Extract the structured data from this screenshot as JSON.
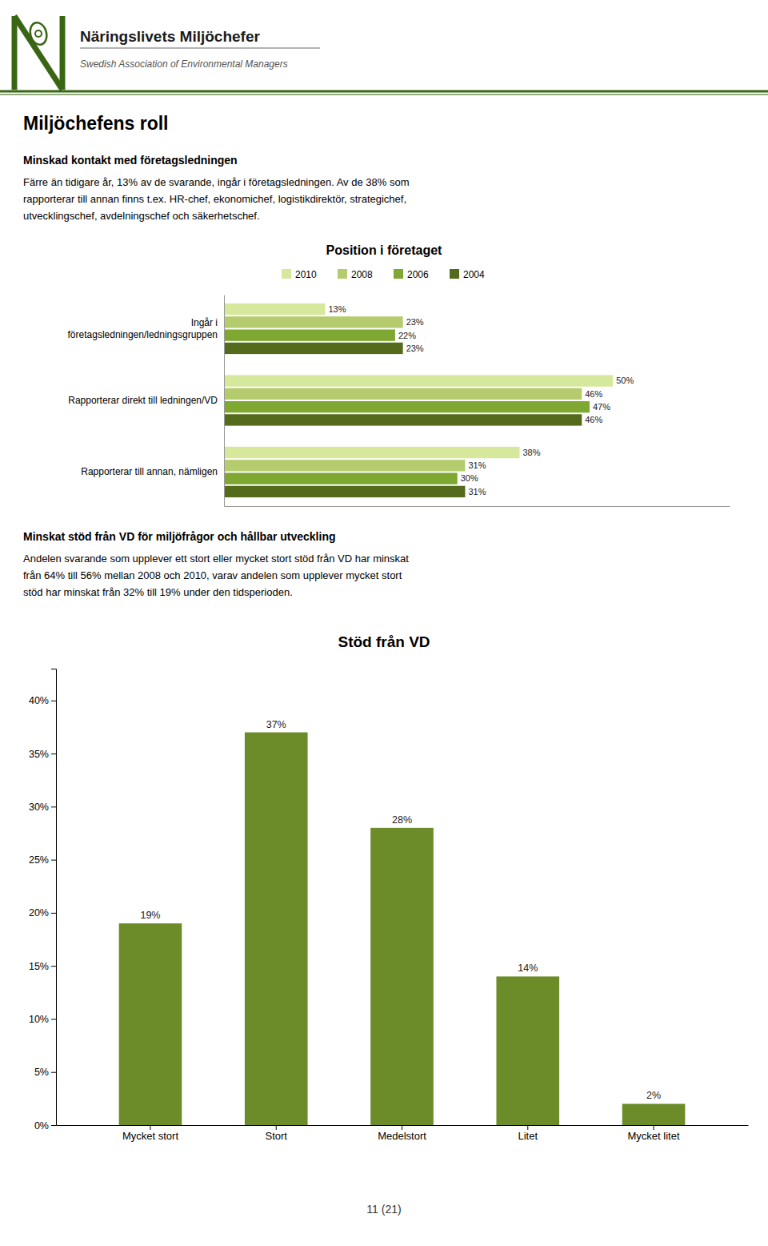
{
  "header": {
    "org": "Näringslivets Miljöchefer",
    "sub": "Swedish Association of Environmental Managers",
    "color": "#3a6614"
  },
  "page_title": "Miljöchefens roll",
  "sections": [
    {
      "heading": "Minskad kontakt med företagsledningen",
      "lines": [
        "Färre än tidigare år, 13% av de svarande, ingår i företagsledningen. Av de 38% som",
        "rapporterar till annan finns t.ex. HR-chef, ekonomichef, logistikdirektör, strategichef,",
        "utvecklingschef, avdelningschef och säkerhetschef."
      ]
    },
    {
      "heading": "Minskat stöd från VD för miljöfrågor och hållbar utveckling",
      "lines": [
        "Andelen svarande som upplever ett stort eller mycket stort stöd från VD har minskat",
        "från 64% till 56% mellan 2008 och 2010, varav andelen som upplever mycket stort",
        "stöd har minskat från 32% till 19% under den tidsperioden."
      ]
    }
  ],
  "footer": "11 (21)",
  "chart_data": [
    {
      "type": "bar",
      "orientation": "horizontal",
      "title": "Position i företaget",
      "categories": [
        "Ingår i\nföretagsledningen/ledningsgruppen",
        "Rapporterar direkt till ledningen/VD",
        "Rapporterar till annan, nämligen"
      ],
      "series": [
        {
          "name": "2010",
          "color": "#d6e89c",
          "values": [
            13,
            50,
            38
          ],
          "value_labels": [
            "13%",
            "50%",
            "38%"
          ]
        },
        {
          "name": "2008",
          "color": "#b5cc6e",
          "values": [
            23,
            46,
            31
          ],
          "value_labels": [
            "23%",
            "46%",
            "31%"
          ]
        },
        {
          "name": "2006",
          "color": "#7ea832",
          "values": [
            22,
            47,
            30
          ],
          "value_labels": [
            "22%",
            "47%",
            "30%"
          ]
        },
        {
          "name": "2004",
          "color": "#536b1a",
          "values": [
            23,
            46,
            31
          ],
          "value_labels": [
            "23%",
            "46%",
            "31%"
          ]
        }
      ],
      "xlim": [
        0,
        65
      ],
      "tick_labels": "y",
      "legend": "top",
      "grid": false,
      "data_labels": true
    },
    {
      "type": "bar",
      "title": "Stöd från VD",
      "categories": [
        "Mycket stort",
        "Stort",
        "Medelstort",
        "Litet",
        "Mycket litet"
      ],
      "values": [
        19,
        37,
        28,
        14,
        2
      ],
      "value_labels": [
        "19%",
        "37%",
        "28%",
        "14%",
        "2%"
      ],
      "color": "#6b8c28",
      "ylim": [
        0,
        43
      ],
      "yticks": [
        {
          "value": 0,
          "label": "0%"
        },
        {
          "value": 5,
          "label": "5%"
        },
        {
          "value": 10,
          "label": "10%"
        },
        {
          "value": 15,
          "label": "15%"
        },
        {
          "value": 20,
          "label": "20%"
        },
        {
          "value": 25,
          "label": "25%"
        },
        {
          "value": 30,
          "label": "30%"
        },
        {
          "value": 35,
          "label": "35%"
        },
        {
          "value": 40,
          "label": "40%"
        }
      ],
      "grid": false,
      "data_labels": true
    }
  ]
}
